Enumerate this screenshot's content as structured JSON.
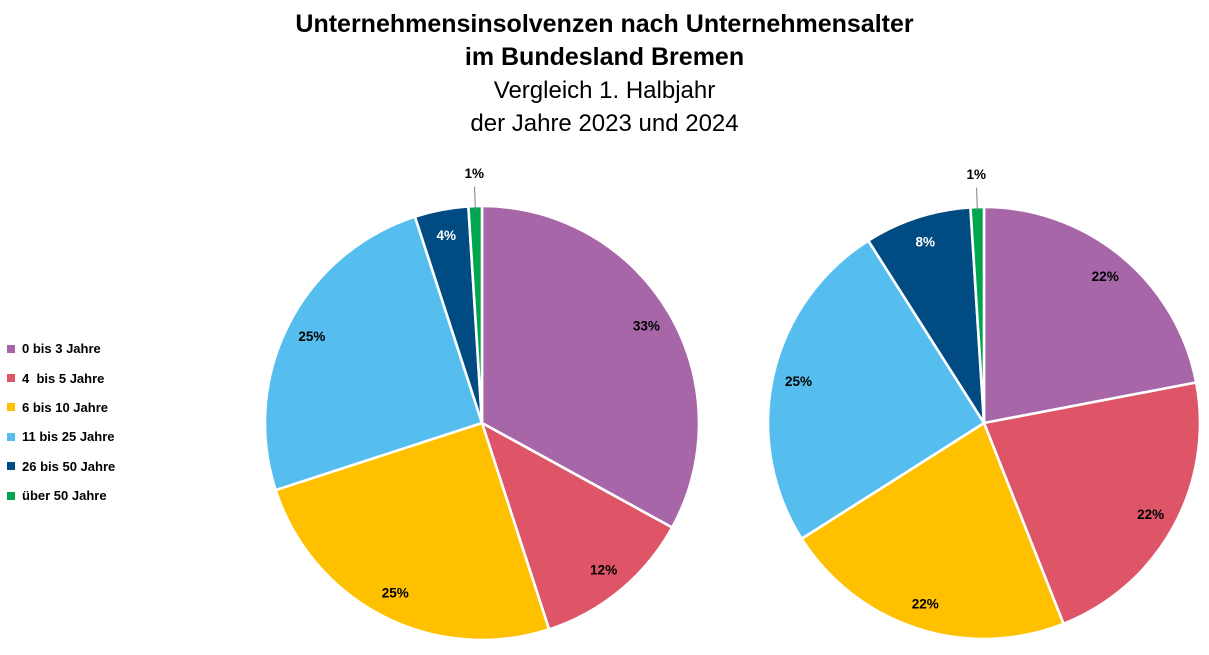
{
  "title": {
    "line1": "Unternehmensinsolvenzen nach Unternehmensalter",
    "line2": "im Bundesland Bremen",
    "line3": "Vergleich 1. Halbjahr",
    "line4": "der Jahre 2023 und 2024"
  },
  "legend": {
    "position": "left",
    "items": [
      {
        "label": "0 bis 3 Jahre",
        "color": "#A666A8"
      },
      {
        "label": "4  bis 5 Jahre",
        "color": "#DE5568"
      },
      {
        "label": "6 bis 10 Jahre",
        "color": "#FFC000"
      },
      {
        "label": "11 bis 25 Jahre",
        "color": "#56BEEF"
      },
      {
        "label": "26 bis 50 Jahre",
        "color": "#004B82"
      },
      {
        "label": "über 50 Jahre",
        "color": "#00A64F"
      }
    ]
  },
  "chart_data": [
    {
      "type": "pie",
      "position": "left",
      "categories": [
        "0 bis 3 Jahre",
        "4  bis 5 Jahre",
        "6 bis 10 Jahre",
        "11 bis 25 Jahre",
        "26 bis 50 Jahre",
        "über 50 Jahre"
      ],
      "values": [
        33,
        12,
        25,
        25,
        4,
        1
      ],
      "labels": [
        "33%",
        "12%",
        "25%",
        "25%",
        "4%",
        "1%"
      ],
      "colors": [
        "#A666A8",
        "#DE5568",
        "#FFC000",
        "#56BEEF",
        "#004B82",
        "#00A64F"
      ],
      "label_colors": [
        "#000000",
        "#000000",
        "#000000",
        "#000000",
        "#FFFFFF",
        "#000000"
      ],
      "start_angle": 0,
      "direction": "clockwise",
      "slice_border_color": "#FFFFFF",
      "leader_line_color": "#808080"
    },
    {
      "type": "pie",
      "position": "right",
      "categories": [
        "0 bis 3 Jahre",
        "4  bis 5 Jahre",
        "6 bis 10 Jahre",
        "11 bis 25 Jahre",
        "26 bis 50 Jahre",
        "über 50 Jahre"
      ],
      "values": [
        22,
        22,
        22,
        25,
        8,
        1
      ],
      "labels": [
        "22%",
        "22%",
        "22%",
        "25%",
        "8%",
        "1%"
      ],
      "colors": [
        "#A666A8",
        "#DE5568",
        "#FFC000",
        "#56BEEF",
        "#004B82",
        "#00A64F"
      ],
      "label_colors": [
        "#000000",
        "#000000",
        "#000000",
        "#000000",
        "#FFFFFF",
        "#000000"
      ],
      "start_angle": 0,
      "direction": "clockwise",
      "slice_border_color": "#FFFFFF",
      "leader_line_color": "#808080"
    }
  ]
}
